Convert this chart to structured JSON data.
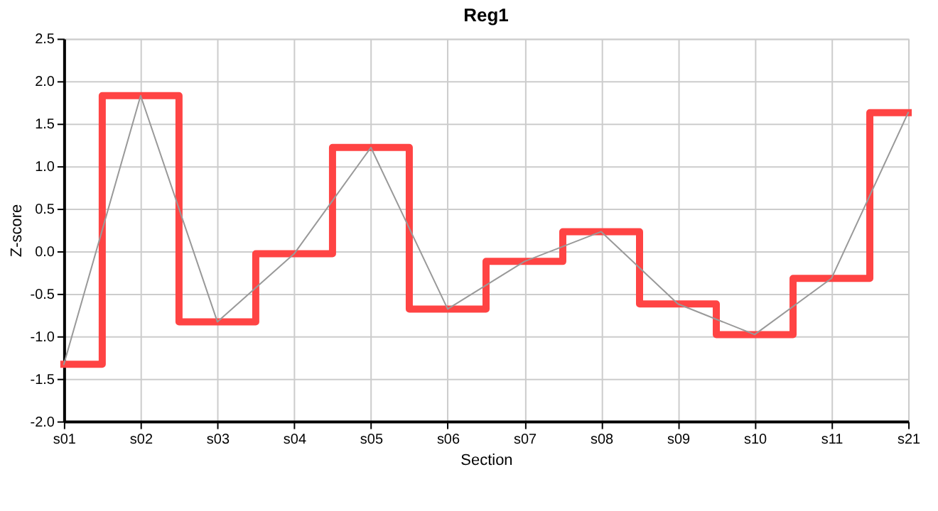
{
  "chart_data": {
    "type": "line",
    "title": "Reg1",
    "xlabel": "Section",
    "ylabel": "Z-score",
    "categories": [
      "s01",
      "s02",
      "s03",
      "s04",
      "s05",
      "s06",
      "s07",
      "s08",
      "s09",
      "s10",
      "s11",
      "s21"
    ],
    "series": [
      {
        "type": "step",
        "color": "#ff4444",
        "values": [
          -1.33,
          1.83,
          -0.83,
          -0.03,
          1.22,
          -0.68,
          -0.12,
          0.23,
          -0.62,
          -0.98,
          -0.32,
          1.63
        ]
      },
      {
        "color": "#999999",
        "values": [
          -1.33,
          1.83,
          -0.83,
          -0.03,
          1.22,
          -0.68,
          -0.12,
          0.23,
          -0.62,
          -0.98,
          -0.32,
          1.63
        ]
      }
    ],
    "ylim": [
      -2.0,
      2.5
    ],
    "yticks": [
      {
        "value": -2.0,
        "label": "-2.0"
      },
      {
        "value": -1.5,
        "label": "-1.5"
      },
      {
        "value": -1.0,
        "label": "-1.0"
      },
      {
        "value": -0.5,
        "label": "-0.5"
      },
      {
        "value": 0.0,
        "label": "0.0"
      },
      {
        "value": 0.5,
        "label": "0.5"
      },
      {
        "value": 1.0,
        "label": "1.0"
      },
      {
        "value": 1.5,
        "label": "1.5"
      },
      {
        "value": 2.0,
        "label": "2.0"
      },
      {
        "value": 2.5,
        "label": "2.5"
      }
    ],
    "grid": true
  }
}
